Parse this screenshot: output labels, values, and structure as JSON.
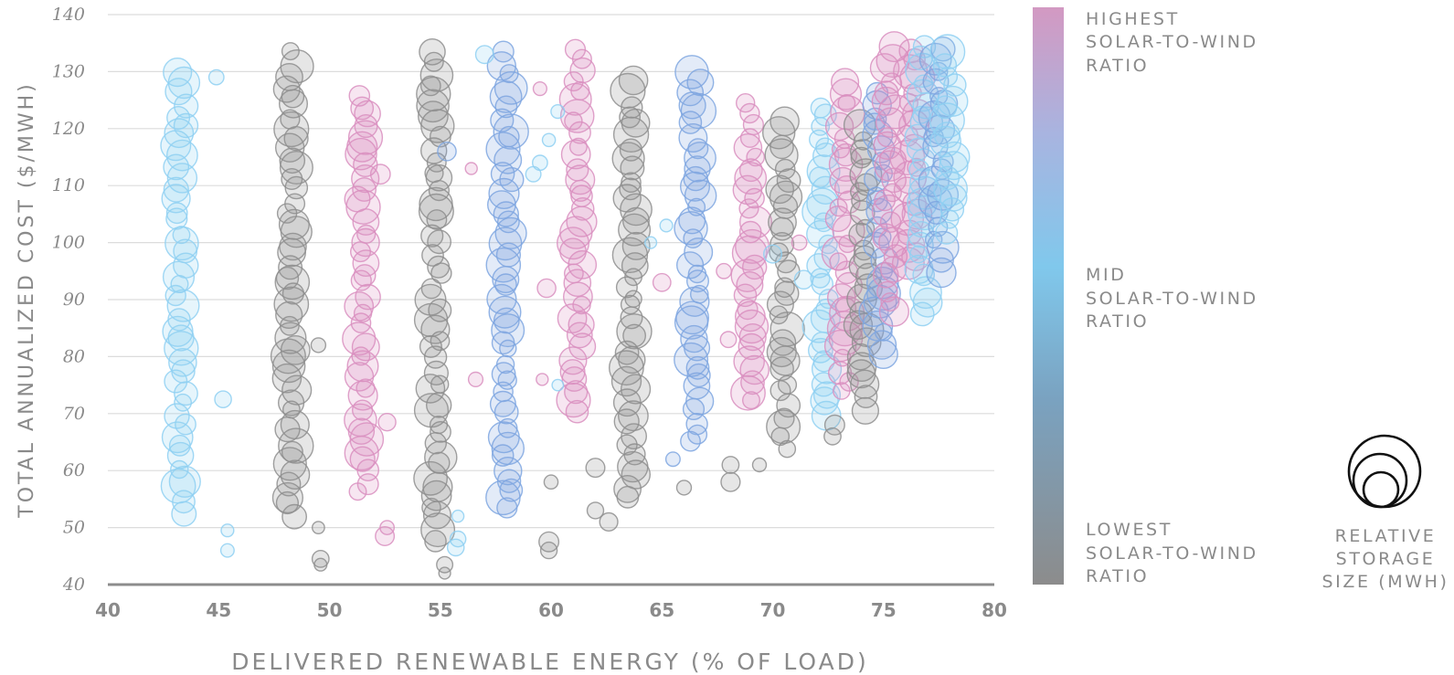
{
  "chart_data": {
    "type": "scatter",
    "title": "",
    "xlabel": "DELIVERED RENEWABLE ENERGY (% OF LOAD)",
    "ylabel": "TOTAL ANNUALIZED COST ($/MWH)",
    "xlim": [
      40,
      80
    ],
    "ylim": [
      40,
      140
    ],
    "x_ticks": [
      "40",
      "45",
      "50",
      "55",
      "60",
      "65",
      "70",
      "75",
      "80"
    ],
    "y_ticks": [
      "40",
      "50",
      "60",
      "70",
      "80",
      "90",
      "100",
      "110",
      "120",
      "130",
      "140"
    ],
    "grid": "horizontal",
    "color_scale": {
      "label_top": [
        "HIGHEST",
        "SOLAR-TO-WIND",
        "RATIO"
      ],
      "label_mid": [
        "MID",
        "SOLAR-TO-WIND",
        "RATIO"
      ],
      "label_bottom": [
        "LOWEST",
        "SOLAR-TO-WIND",
        "RATIO"
      ],
      "colors": [
        "#d399c2",
        "#a8b4e0",
        "#80c8ec",
        "#7aa2c0",
        "#8c8c8c"
      ]
    },
    "size_legend_label": [
      "RELATIVE",
      "STORAGE",
      "SIZE (MWH)"
    ],
    "point_colors": {
      "pink": "#d98fc0",
      "lightblue": "#8fd0f2",
      "blue": "#7ea6e0",
      "gray": "#8e8e8e"
    },
    "columns": [
      {
        "x": 43.3,
        "color": "lightblue",
        "y_min": 53,
        "y_max": 130
      },
      {
        "x": 48.3,
        "color": "gray",
        "y_min": 52,
        "y_max": 133
      },
      {
        "x": 51.5,
        "color": "pink",
        "y_min": 56,
        "y_max": 126
      },
      {
        "x": 54.8,
        "color": "gray",
        "y_min": 48,
        "y_max": 133
      },
      {
        "x": 58.0,
        "color": "blue",
        "y_min": 53,
        "y_max": 133
      },
      {
        "x": 61.2,
        "color": "pink",
        "y_min": 70,
        "y_max": 134
      },
      {
        "x": 63.6,
        "color": "gray",
        "y_min": 55,
        "y_max": 128
      },
      {
        "x": 66.5,
        "color": "blue",
        "y_min": 65,
        "y_max": 130
      },
      {
        "x": 69.0,
        "color": "pink",
        "y_min": 72,
        "y_max": 124
      },
      {
        "x": 70.5,
        "color": "gray",
        "y_min": 64,
        "y_max": 121
      },
      {
        "x": 72.3,
        "color": "lightblue",
        "y_min": 70,
        "y_max": 124
      },
      {
        "x": 73.2,
        "color": "pink",
        "y_min": 74,
        "y_max": 128
      },
      {
        "x": 74.1,
        "color": "gray",
        "y_min": 71,
        "y_max": 120
      },
      {
        "x": 74.8,
        "color": "blue",
        "y_min": 80,
        "y_max": 126
      },
      {
        "x": 75.3,
        "color": "pink",
        "y_min": 88,
        "y_max": 134
      },
      {
        "x": 76.3,
        "color": "pink",
        "y_min": 96,
        "y_max": 134
      },
      {
        "x": 76.8,
        "color": "lightblue",
        "y_min": 88,
        "y_max": 134
      },
      {
        "x": 77.5,
        "color": "blue",
        "y_min": 95,
        "y_max": 134
      },
      {
        "x": 78.0,
        "color": "lightblue",
        "y_min": 102,
        "y_max": 133
      }
    ],
    "scattered_points": [
      {
        "x": 44.9,
        "y": 129,
        "color": "lightblue"
      },
      {
        "x": 45.2,
        "y": 72.5,
        "color": "lightblue"
      },
      {
        "x": 45.4,
        "y": 49.5,
        "color": "lightblue"
      },
      {
        "x": 45.4,
        "y": 46,
        "color": "lightblue"
      },
      {
        "x": 49.5,
        "y": 82,
        "color": "gray"
      },
      {
        "x": 49.5,
        "y": 50,
        "color": "gray"
      },
      {
        "x": 49.6,
        "y": 44.5,
        "color": "gray"
      },
      {
        "x": 49.6,
        "y": 43.5,
        "color": "gray"
      },
      {
        "x": 52.3,
        "y": 112,
        "color": "pink"
      },
      {
        "x": 52.6,
        "y": 68.5,
        "color": "pink"
      },
      {
        "x": 52.6,
        "y": 50,
        "color": "pink"
      },
      {
        "x": 52.5,
        "y": 48.5,
        "color": "pink"
      },
      {
        "x": 55.3,
        "y": 116,
        "color": "blue"
      },
      {
        "x": 55.2,
        "y": 43.5,
        "color": "gray"
      },
      {
        "x": 55.2,
        "y": 42,
        "color": "gray"
      },
      {
        "x": 55.8,
        "y": 52,
        "color": "lightblue"
      },
      {
        "x": 55.8,
        "y": 48,
        "color": "lightblue"
      },
      {
        "x": 55.7,
        "y": 46.5,
        "color": "lightblue"
      },
      {
        "x": 56.4,
        "y": 113,
        "color": "pink"
      },
      {
        "x": 56.6,
        "y": 76,
        "color": "pink"
      },
      {
        "x": 57.0,
        "y": 133,
        "color": "lightblue"
      },
      {
        "x": 59.2,
        "y": 112,
        "color": "lightblue"
      },
      {
        "x": 59.5,
        "y": 114,
        "color": "lightblue"
      },
      {
        "x": 59.5,
        "y": 127,
        "color": "pink"
      },
      {
        "x": 59.9,
        "y": 118,
        "color": "lightblue"
      },
      {
        "x": 59.8,
        "y": 92,
        "color": "pink"
      },
      {
        "x": 59.6,
        "y": 76,
        "color": "pink"
      },
      {
        "x": 60.0,
        "y": 58,
        "color": "gray"
      },
      {
        "x": 59.9,
        "y": 47.5,
        "color": "gray"
      },
      {
        "x": 59.9,
        "y": 46,
        "color": "gray"
      },
      {
        "x": 60.3,
        "y": 123,
        "color": "lightblue"
      },
      {
        "x": 60.3,
        "y": 75,
        "color": "lightblue"
      },
      {
        "x": 62.0,
        "y": 60.5,
        "color": "gray"
      },
      {
        "x": 62.0,
        "y": 53,
        "color": "gray"
      },
      {
        "x": 62.6,
        "y": 51,
        "color": "gray"
      },
      {
        "x": 64.5,
        "y": 100,
        "color": "lightblue"
      },
      {
        "x": 65.0,
        "y": 93,
        "color": "pink"
      },
      {
        "x": 65.2,
        "y": 103,
        "color": "lightblue"
      },
      {
        "x": 65.5,
        "y": 62,
        "color": "blue"
      },
      {
        "x": 66.0,
        "y": 57,
        "color": "gray"
      },
      {
        "x": 67.8,
        "y": 95,
        "color": "pink"
      },
      {
        "x": 68.0,
        "y": 83,
        "color": "pink"
      },
      {
        "x": 68.1,
        "y": 58,
        "color": "gray"
      },
      {
        "x": 68.1,
        "y": 61,
        "color": "gray"
      },
      {
        "x": 69.4,
        "y": 61,
        "color": "gray"
      },
      {
        "x": 70.0,
        "y": 98,
        "color": "lightblue"
      },
      {
        "x": 71.2,
        "y": 100,
        "color": "pink"
      },
      {
        "x": 71.4,
        "y": 93.5,
        "color": "lightblue"
      },
      {
        "x": 72.7,
        "y": 66,
        "color": "gray"
      },
      {
        "x": 72.8,
        "y": 68,
        "color": "gray"
      }
    ]
  }
}
